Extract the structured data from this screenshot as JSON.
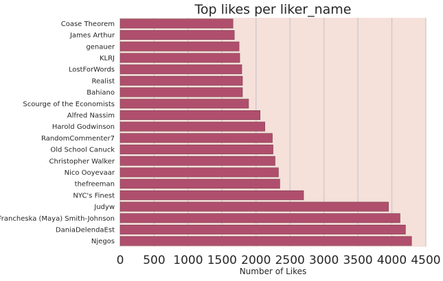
{
  "chart_data": {
    "type": "bar",
    "orientation": "horizontal",
    "title": "Top likes per liker_name",
    "xlabel": "Number of Likes",
    "ylabel": "",
    "xlim": [
      0,
      4500
    ],
    "xticks": [
      "0",
      "500",
      "1000",
      "1500",
      "2000",
      "2500",
      "3000",
      "3500",
      "4000",
      "4500"
    ],
    "grid": true,
    "bar_color": "#b04f6d",
    "plot_background": "#f5e0da",
    "categories": [
      "Coase Theorem",
      "James Arthur",
      "genauer",
      "KLRJ",
      "LostForWords",
      "Realist",
      "Bahiano",
      "Scourge of the Economists",
      "Alfred Nassim",
      "Harold Godwinson",
      "RandomCommenter7",
      "Old School Canuck",
      "Christopher Walker",
      "Nico Ooyevaar",
      "thefreeman",
      "NYC's Finest",
      "Judyw",
      "Francheska (Maya) Smith-Johnson",
      "DaniaDelendaEst",
      "Njegos"
    ],
    "values": [
      1660,
      1680,
      1750,
      1760,
      1790,
      1800,
      1800,
      1890,
      2060,
      2130,
      2240,
      2250,
      2280,
      2330,
      2350,
      2700,
      3950,
      4120,
      4200,
      4290
    ]
  }
}
